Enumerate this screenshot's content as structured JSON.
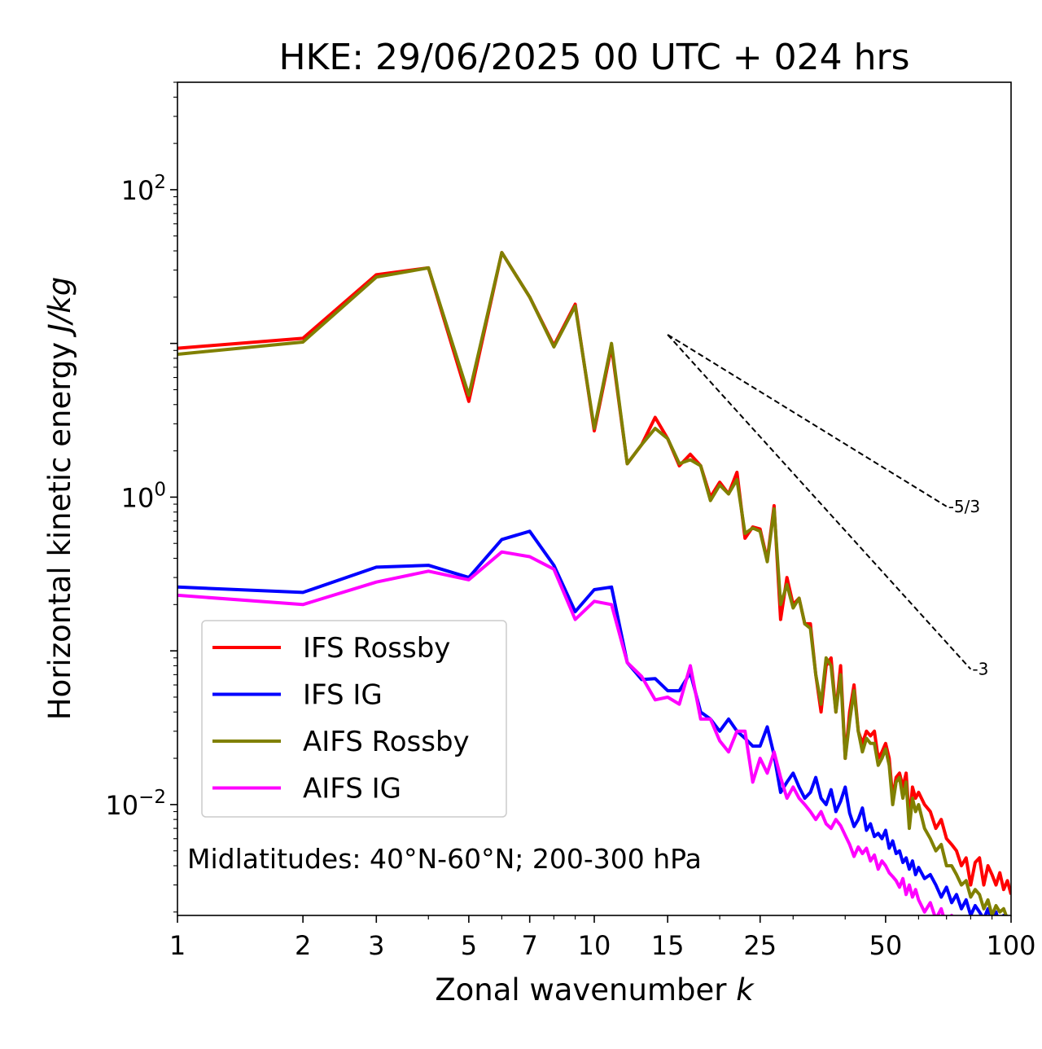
{
  "chart_data": {
    "type": "line",
    "title": "HKE: 29/06/2025 00 UTC + 024 hrs",
    "xlabel": "Zonal wavenumber",
    "xlabel_var": "k",
    "ylabel": "Horizontal kinetic energy",
    "ylabel_unit": "J/kg",
    "xscale": "log",
    "yscale": "log",
    "xlim": [
      1,
      100
    ],
    "ylim": [
      0.0019,
      500
    ],
    "x_ticks": [
      {
        "value": 1,
        "label": "1"
      },
      {
        "value": 2,
        "label": "2"
      },
      {
        "value": 3,
        "label": "3"
      },
      {
        "value": 5,
        "label": "5"
      },
      {
        "value": 7,
        "label": "7"
      },
      {
        "value": 10,
        "label": "10"
      },
      {
        "value": 15,
        "label": "15"
      },
      {
        "value": 25,
        "label": "25"
      },
      {
        "value": 50,
        "label": "50"
      },
      {
        "value": 100,
        "label": "100"
      }
    ],
    "y_ticks": [
      {
        "value": 100,
        "base": "10",
        "exp": "2"
      },
      {
        "value": 1,
        "base": "10",
        "exp": "0"
      },
      {
        "value": 0.01,
        "base": "10",
        "exp": "−2"
      }
    ],
    "annotation": "Midlatitudes: 40°N-60°N; 200-300 hPa",
    "legend_position": "lower-left",
    "reference_lines": [
      {
        "label": "-5/3",
        "x": [
          15,
          70
        ],
        "y": [
          11.4,
          0.87
        ]
      },
      {
        "label": "-3",
        "x": [
          15,
          80
        ],
        "y": [
          11.4,
          0.076
        ]
      }
    ],
    "series": [
      {
        "name": "IFS Rossby",
        "color": "#ff0000",
        "x": [
          1,
          2,
          3,
          4,
          5,
          6,
          7,
          8,
          9,
          10,
          11,
          12,
          13,
          14,
          15,
          16,
          17,
          18,
          19,
          20,
          21,
          22,
          23,
          24,
          25,
          26,
          27,
          28,
          29,
          30,
          31,
          32,
          33,
          34,
          35,
          36,
          37,
          38,
          39,
          40,
          41,
          42,
          43,
          44,
          45,
          46,
          47,
          48,
          49,
          50,
          51,
          52,
          53,
          54,
          55,
          56,
          57,
          58,
          59,
          60,
          62,
          64,
          66,
          68,
          70,
          72,
          74,
          76,
          78,
          80,
          82,
          84,
          86,
          88,
          90,
          92,
          94,
          96,
          98,
          100
        ],
        "y": [
          9.3,
          10.8,
          28,
          31,
          4.2,
          39,
          20,
          9.7,
          18,
          2.7,
          9.5,
          1.65,
          2.2,
          3.3,
          2.4,
          1.6,
          1.9,
          1.6,
          1.0,
          1.25,
          1.05,
          1.45,
          0.54,
          0.64,
          0.62,
          0.39,
          0.88,
          0.16,
          0.3,
          0.2,
          0.22,
          0.15,
          0.15,
          0.07,
          0.04,
          0.08,
          0.09,
          0.04,
          0.08,
          0.02,
          0.04,
          0.06,
          0.03,
          0.025,
          0.03,
          0.028,
          0.03,
          0.02,
          0.022,
          0.025,
          0.02,
          0.011,
          0.015,
          0.016,
          0.013,
          0.016,
          0.008,
          0.013,
          0.011,
          0.012,
          0.01,
          0.009,
          0.007,
          0.008,
          0.006,
          0.0055,
          0.005,
          0.004,
          0.0045,
          0.003,
          0.0042,
          0.0045,
          0.003,
          0.004,
          0.0035,
          0.003,
          0.0036,
          0.0028,
          0.0032,
          0.0026
        ]
      },
      {
        "name": "IFS IG",
        "color": "#0000ff",
        "x": [
          1,
          2,
          3,
          4,
          5,
          6,
          7,
          8,
          9,
          10,
          11,
          12,
          13,
          14,
          15,
          16,
          17,
          18,
          19,
          20,
          21,
          22,
          23,
          24,
          25,
          26,
          27,
          28,
          29,
          30,
          31,
          32,
          33,
          34,
          35,
          36,
          37,
          38,
          39,
          40,
          41,
          42,
          43,
          44,
          45,
          46,
          47,
          48,
          49,
          50,
          51,
          52,
          53,
          54,
          55,
          56,
          57,
          58,
          59,
          60,
          62,
          64,
          66,
          68,
          70,
          72,
          74,
          76,
          78,
          80,
          82,
          84,
          86,
          88,
          90,
          92,
          94,
          96,
          98,
          100
        ],
        "y": [
          0.26,
          0.24,
          0.35,
          0.36,
          0.3,
          0.53,
          0.6,
          0.36,
          0.18,
          0.25,
          0.26,
          0.084,
          0.065,
          0.066,
          0.055,
          0.055,
          0.072,
          0.04,
          0.036,
          0.03,
          0.036,
          0.03,
          0.027,
          0.024,
          0.024,
          0.032,
          0.021,
          0.012,
          0.014,
          0.016,
          0.013,
          0.011,
          0.012,
          0.015,
          0.011,
          0.01,
          0.0125,
          0.009,
          0.0105,
          0.013,
          0.0088,
          0.0072,
          0.008,
          0.0095,
          0.0068,
          0.0075,
          0.0062,
          0.0065,
          0.006,
          0.0068,
          0.0052,
          0.0058,
          0.0048,
          0.005,
          0.0042,
          0.0045,
          0.0038,
          0.0043,
          0.0035,
          0.0039,
          0.0033,
          0.0035,
          0.003,
          0.0025,
          0.0029,
          0.0023,
          0.0026,
          0.0021,
          0.0024,
          0.0019,
          0.0022,
          0.002,
          0.0018,
          0.0021,
          0.0017,
          0.002,
          0.0016,
          0.0019,
          0.0016,
          0.0015
        ]
      },
      {
        "name": "AIFS Rossby",
        "color": "#808000",
        "x": [
          1,
          2,
          3,
          4,
          5,
          6,
          7,
          8,
          9,
          10,
          11,
          12,
          13,
          14,
          15,
          16,
          17,
          18,
          19,
          20,
          21,
          22,
          23,
          24,
          25,
          26,
          27,
          28,
          29,
          30,
          31,
          32,
          33,
          34,
          35,
          36,
          37,
          38,
          39,
          40,
          41,
          42,
          43,
          44,
          45,
          46,
          47,
          48,
          49,
          50,
          51,
          52,
          53,
          54,
          55,
          56,
          57,
          58,
          59,
          60,
          62,
          64,
          66,
          68,
          70,
          72,
          74,
          76,
          78,
          80,
          82,
          84,
          86,
          88,
          90,
          92,
          94,
          96,
          98,
          100
        ],
        "y": [
          8.5,
          10.2,
          27,
          31,
          4.6,
          39,
          20,
          9.5,
          17.5,
          2.8,
          10,
          1.65,
          2.2,
          2.8,
          2.4,
          1.65,
          1.75,
          1.6,
          0.95,
          1.2,
          1.05,
          1.3,
          0.58,
          0.63,
          0.6,
          0.38,
          0.84,
          0.2,
          0.27,
          0.19,
          0.22,
          0.15,
          0.14,
          0.07,
          0.045,
          0.09,
          0.08,
          0.04,
          0.07,
          0.02,
          0.035,
          0.055,
          0.03,
          0.022,
          0.027,
          0.025,
          0.025,
          0.018,
          0.02,
          0.023,
          0.018,
          0.01,
          0.014,
          0.015,
          0.011,
          0.014,
          0.007,
          0.011,
          0.009,
          0.01,
          0.007,
          0.006,
          0.005,
          0.0055,
          0.004,
          0.004,
          0.0035,
          0.003,
          0.0032,
          0.0025,
          0.0028,
          0.0026,
          0.0021,
          0.0024,
          0.0019,
          0.0022,
          0.002,
          0.0021,
          0.0018,
          0.0017
        ]
      },
      {
        "name": "AIFS IG",
        "color": "#ff00ff",
        "x": [
          1,
          2,
          3,
          4,
          5,
          6,
          7,
          8,
          9,
          10,
          11,
          12,
          13,
          14,
          15,
          16,
          17,
          18,
          19,
          20,
          21,
          22,
          23,
          24,
          25,
          26,
          27,
          28,
          29,
          30,
          31,
          32,
          33,
          34,
          35,
          36,
          37,
          38,
          39,
          40,
          41,
          42,
          43,
          44,
          45,
          46,
          47,
          48,
          49,
          50,
          51,
          52,
          53,
          54,
          55,
          56,
          57,
          58,
          59,
          60,
          62,
          64,
          66,
          68,
          70,
          72,
          74,
          76,
          78,
          80,
          82,
          84,
          86,
          88,
          90
        ],
        "y": [
          0.23,
          0.2,
          0.28,
          0.33,
          0.29,
          0.44,
          0.41,
          0.34,
          0.16,
          0.21,
          0.2,
          0.084,
          0.068,
          0.048,
          0.05,
          0.045,
          0.08,
          0.036,
          0.036,
          0.026,
          0.022,
          0.03,
          0.03,
          0.014,
          0.02,
          0.016,
          0.022,
          0.015,
          0.011,
          0.013,
          0.011,
          0.01,
          0.009,
          0.008,
          0.009,
          0.0075,
          0.007,
          0.008,
          0.0073,
          0.0063,
          0.0055,
          0.0046,
          0.0053,
          0.0048,
          0.0052,
          0.0043,
          0.0047,
          0.0038,
          0.0043,
          0.004,
          0.0036,
          0.0034,
          0.0032,
          0.0029,
          0.0033,
          0.0026,
          0.003,
          0.0025,
          0.0028,
          0.0024,
          0.002,
          0.0023,
          0.0018,
          0.0021,
          0.0016,
          0.0019,
          0.0015,
          0.0017,
          0.0014,
          0.0016,
          0.0013,
          0.0015,
          0.0012,
          0.0014,
          0.0011
        ]
      }
    ]
  }
}
